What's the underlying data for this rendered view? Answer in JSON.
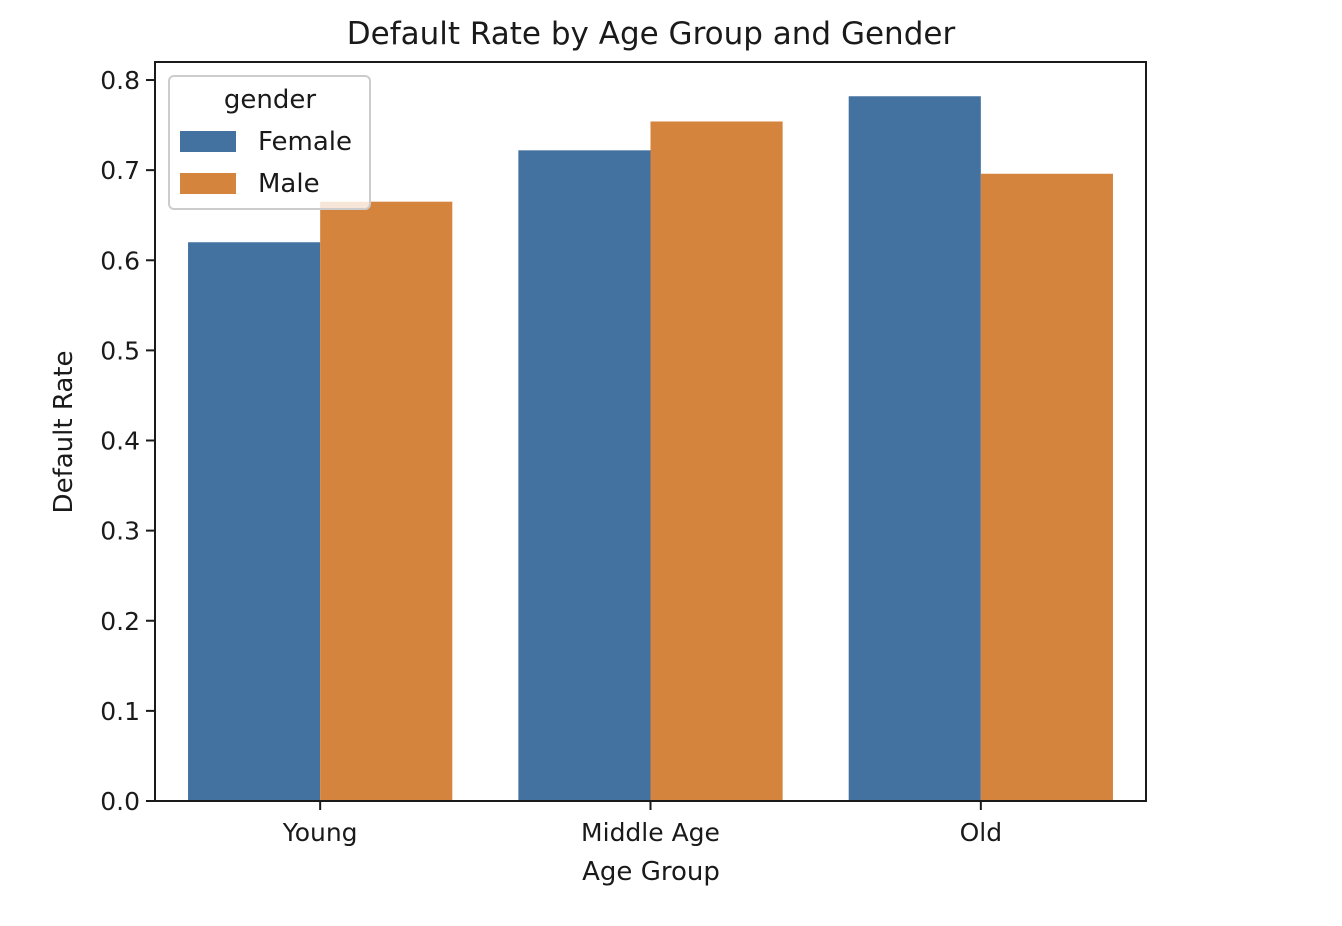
{
  "chart_data": {
    "type": "bar",
    "title": "Default Rate by Age Group and Gender",
    "xlabel": "Age Group",
    "ylabel": "Default Rate",
    "categories": [
      "Young",
      "Middle Age",
      "Old"
    ],
    "series": [
      {
        "name": "Female",
        "values": [
          0.62,
          0.722,
          0.782
        ],
        "color": "#4472a0"
      },
      {
        "name": "Male",
        "values": [
          0.665,
          0.754,
          0.696
        ],
        "color": "#d5843e"
      }
    ],
    "ylim": [
      0,
      0.82
    ],
    "yticks": [
      "0.0",
      "0.1",
      "0.2",
      "0.3",
      "0.4",
      "0.5",
      "0.6",
      "0.7",
      "0.8"
    ],
    "legend": {
      "title": "gender",
      "placement": "top-left"
    },
    "grid": false
  }
}
